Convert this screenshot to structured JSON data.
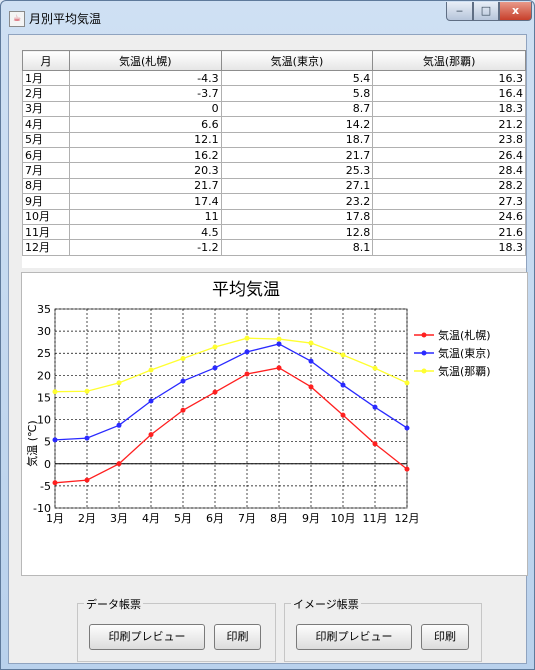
{
  "window": {
    "title": "月別平均気温",
    "min_label": "‒",
    "max_label": "□",
    "close_label": "x"
  },
  "table": {
    "headers": [
      "月",
      "気温(札幌)",
      "気温(東京)",
      "気温(那覇)"
    ],
    "rows": [
      [
        "1月",
        "-4.3",
        "5.4",
        "16.3"
      ],
      [
        "2月",
        "-3.7",
        "5.8",
        "16.4"
      ],
      [
        "3月",
        "0",
        "8.7",
        "18.3"
      ],
      [
        "4月",
        "6.6",
        "14.2",
        "21.2"
      ],
      [
        "5月",
        "12.1",
        "18.7",
        "23.8"
      ],
      [
        "6月",
        "16.2",
        "21.7",
        "26.4"
      ],
      [
        "7月",
        "20.3",
        "25.3",
        "28.4"
      ],
      [
        "8月",
        "21.7",
        "27.1",
        "28.2"
      ],
      [
        "9月",
        "17.4",
        "23.2",
        "27.3"
      ],
      [
        "10月",
        "11",
        "17.8",
        "24.6"
      ],
      [
        "11月",
        "4.5",
        "12.8",
        "21.6"
      ],
      [
        "12月",
        "-1.2",
        "8.1",
        "18.3"
      ]
    ]
  },
  "chart_data": {
    "type": "line",
    "title": "平均気温",
    "xlabel": "",
    "ylabel": "気温 (℃)",
    "categories": [
      "1月",
      "2月",
      "3月",
      "4月",
      "5月",
      "6月",
      "7月",
      "8月",
      "9月",
      "10月",
      "11月",
      "12月"
    ],
    "ylim": [
      -10,
      35
    ],
    "yticks": [
      35,
      30,
      25,
      20,
      15,
      10,
      5,
      0,
      -5,
      -10
    ],
    "grid": true,
    "legend_position": "right",
    "series": [
      {
        "name": "気温(札幌)",
        "color": "#ff2020",
        "values": [
          -4.3,
          -3.7,
          0,
          6.6,
          12.1,
          16.2,
          20.3,
          21.7,
          17.4,
          11,
          4.5,
          -1.2
        ]
      },
      {
        "name": "気温(東京)",
        "color": "#2a2aff",
        "values": [
          5.4,
          5.8,
          8.7,
          14.2,
          18.7,
          21.7,
          25.3,
          27.1,
          23.2,
          17.8,
          12.8,
          8.1
        ]
      },
      {
        "name": "気温(那覇)",
        "color": "#ffff30",
        "values": [
          16.3,
          16.4,
          18.3,
          21.2,
          23.8,
          26.4,
          28.4,
          28.2,
          27.3,
          24.6,
          21.6,
          18.3
        ]
      }
    ]
  },
  "groups": {
    "data_report": {
      "title": "データ帳票",
      "preview_label": "印刷プレビュー",
      "print_label": "印刷"
    },
    "image_report": {
      "title": "イメージ帳票",
      "preview_label": "印刷プレビュー",
      "print_label": "印刷"
    }
  }
}
